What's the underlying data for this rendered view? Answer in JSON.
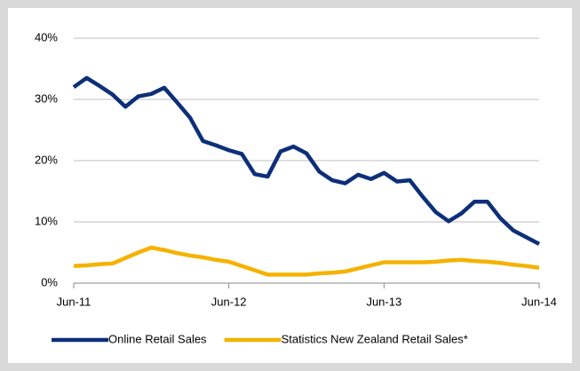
{
  "chart_data": {
    "type": "line",
    "categories": [
      "Jun-11",
      null,
      null,
      null,
      null,
      null,
      null,
      null,
      null,
      null,
      null,
      null,
      "Jun-12",
      null,
      null,
      null,
      null,
      null,
      null,
      null,
      null,
      null,
      null,
      null,
      "Jun-13",
      null,
      null,
      null,
      null,
      null,
      null,
      null,
      null,
      null,
      null,
      null,
      "Jun-14"
    ],
    "series": [
      {
        "name": "Online Retail Sales",
        "color": "#0d2f7a",
        "values": [
          32,
          33.5,
          32.2,
          30.8,
          28.8,
          30.5,
          30.9,
          31.9,
          29.5,
          27,
          23.2,
          22.5,
          21.7,
          21.1,
          17.8,
          17.4,
          21.5,
          22.3,
          21.2,
          18.2,
          16.8,
          16.3,
          17.7,
          17,
          18,
          16.6,
          16.8,
          14.1,
          11.6,
          10.1,
          11.4,
          13.3,
          13.3,
          10.6,
          8.6,
          7.5,
          6.4
        ]
      },
      {
        "name": "Statistics New Zealand Retail Sales*",
        "color": "#f5b200",
        "values": [
          2.8,
          2.9,
          3.1,
          3.2,
          4.1,
          5.0,
          5.8,
          5.4,
          4.9,
          4.5,
          4.2,
          3.8,
          3.5,
          2.8,
          2.1,
          1.4,
          1.4,
          1.4,
          1.4,
          1.6,
          1.7,
          1.9,
          2.4,
          2.9,
          3.4,
          3.4,
          3.4,
          3.4,
          3.5,
          3.7,
          3.8,
          3.6,
          3.5,
          3.3,
          3.0,
          2.8,
          2.5
        ]
      }
    ],
    "ylim": [
      0,
      40
    ],
    "yticks": [
      {
        "value": 0,
        "label": "0%"
      },
      {
        "value": 10,
        "label": "10%"
      },
      {
        "value": 20,
        "label": "20%"
      },
      {
        "value": 30,
        "label": "30%"
      },
      {
        "value": 40,
        "label": "40%"
      }
    ],
    "grid": true,
    "legend": "bottom"
  }
}
